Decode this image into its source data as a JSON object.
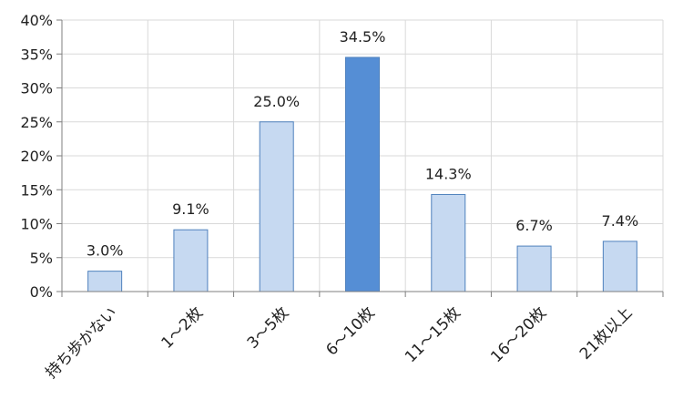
{
  "chart_data": {
    "type": "bar",
    "categories": [
      "持ち歩かない",
      "1～2枚",
      "3～5枚",
      "6～10枚",
      "11～15枚",
      "16～20枚",
      "21枚以上"
    ],
    "values": [
      3.0,
      9.1,
      25.0,
      34.5,
      14.3,
      6.7,
      7.4
    ],
    "data_labels": [
      "3.0%",
      "9.1%",
      "25.0%",
      "34.5%",
      "14.3%",
      "6.7%",
      "7.4%"
    ],
    "y_ticks": [
      "0%",
      "5%",
      "10%",
      "15%",
      "20%",
      "25%",
      "30%",
      "35%",
      "40%"
    ],
    "ylim": [
      0,
      40
    ],
    "grid": true,
    "highlight_index": 3,
    "colors": {
      "bar": "#c6d9f1",
      "bar_highlight": "#558ed5",
      "bar_border": "#4f81bd",
      "grid": "#d9d9d9",
      "axis": "#7f7f7f"
    }
  }
}
